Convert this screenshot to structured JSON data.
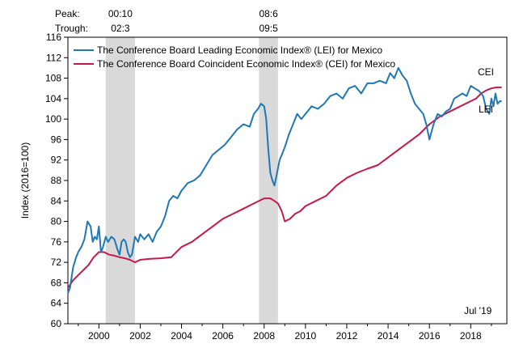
{
  "chart_data": {
    "type": "line",
    "ylabel": "Index (2016=100)",
    "xlabel": "",
    "ylim": [
      60,
      116
    ],
    "yticks": [
      60,
      64,
      68,
      72,
      76,
      80,
      84,
      88,
      92,
      96,
      100,
      104,
      108,
      112,
      116
    ],
    "xlim": [
      1998.5,
      2019.75
    ],
    "xticks": [
      2000,
      2002,
      2004,
      2006,
      2008,
      2010,
      2012,
      2014,
      2016,
      2018
    ],
    "xtick_labels": [
      "2000",
      "2002",
      "2004",
      "2006",
      "2008",
      "2010",
      "2012",
      "2014",
      "2016",
      "2018"
    ],
    "grid": false,
    "legend_position": "top-left",
    "peak_trough": {
      "peak_label": "Peak:",
      "trough_label": "Trough:",
      "periods": [
        {
          "peak": "00:10",
          "trough": "02:3",
          "start": 2000.33,
          "end": 2001.75
        },
        {
          "peak": "08:6",
          "trough": "09:5",
          "start": 2007.75,
          "end": 2008.67
        }
      ]
    },
    "annotations": {
      "date": "Jul '19",
      "cei": "CEI",
      "lei": "LEI"
    },
    "colors": {
      "lei": "#1f77b4",
      "cei": "#c8174a",
      "recession": "#d9d9d9"
    },
    "series": [
      {
        "name": "The Conference Board Leading Economic Index® (LEI) for Mexico",
        "key": "lei",
        "x": [
          1998.5,
          1998.6,
          1998.75,
          1998.9,
          1999.0,
          1999.15,
          1999.3,
          1999.45,
          1999.6,
          1999.7,
          1999.8,
          1999.9,
          2000.0,
          2000.1,
          2000.2,
          2000.33,
          2000.45,
          2000.6,
          2000.75,
          2000.9,
          2001.0,
          2001.1,
          2001.2,
          2001.3,
          2001.4,
          2001.5,
          2001.6,
          2001.75,
          2001.9,
          2002.0,
          2002.2,
          2002.4,
          2002.6,
          2002.8,
          2003.0,
          2003.2,
          2003.4,
          2003.6,
          2003.8,
          2004.0,
          2004.3,
          2004.6,
          2004.9,
          2005.2,
          2005.5,
          2005.8,
          2006.1,
          2006.4,
          2006.7,
          2007.0,
          2007.3,
          2007.5,
          2007.7,
          2007.85,
          2008.0,
          2008.1,
          2008.2,
          2008.3,
          2008.4,
          2008.5,
          2008.6,
          2008.75,
          2008.9,
          2009.0,
          2009.2,
          2009.4,
          2009.6,
          2009.8,
          2010.0,
          2010.3,
          2010.6,
          2010.9,
          2011.2,
          2011.5,
          2011.8,
          2012.1,
          2012.4,
          2012.7,
          2013.0,
          2013.3,
          2013.6,
          2013.9,
          2014.1,
          2014.3,
          2014.5,
          2014.7,
          2014.9,
          2015.1,
          2015.3,
          2015.5,
          2015.7,
          2015.85,
          2016.0,
          2016.2,
          2016.4,
          2016.6,
          2016.8,
          2017.0,
          2017.2,
          2017.4,
          2017.6,
          2017.8,
          2018.0,
          2018.2,
          2018.4,
          2018.6,
          2018.75,
          2018.9,
          2019.0,
          2019.1,
          2019.2,
          2019.3,
          2019.42,
          2019.5
        ],
        "values": [
          66,
          67,
          71,
          73,
          74,
          75,
          76.5,
          80,
          79,
          76,
          77,
          76.5,
          79,
          74,
          75,
          77,
          76,
          77,
          76.5,
          74.5,
          73.5,
          76,
          76.5,
          76,
          74,
          73,
          73.5,
          77,
          76,
          77.5,
          76.5,
          77.5,
          76,
          78,
          79,
          81,
          84,
          85,
          84.5,
          86,
          87.5,
          88,
          89,
          91,
          93,
          94,
          95,
          96.5,
          98,
          99,
          98.5,
          101,
          102,
          103,
          102.5,
          100,
          94,
          89.5,
          88,
          87,
          89,
          92,
          93.5,
          94.5,
          97,
          99,
          101,
          100,
          101,
          102.5,
          102,
          103,
          104.5,
          105,
          104,
          106,
          106.5,
          105,
          107,
          107,
          107.5,
          107,
          109,
          108,
          110,
          108.5,
          107.5,
          105,
          103,
          102,
          101,
          99,
          96,
          99,
          101,
          100.5,
          101.5,
          102,
          104,
          104.5,
          105,
          104.5,
          106.5,
          106,
          105.5,
          104.5,
          102,
          101,
          104,
          102.5,
          105,
          103,
          103.5,
          103.5
        ]
      },
      {
        "name": "The Conference Board Coincident Economic Index® (CEI) for Mexico",
        "key": "cei",
        "x": [
          1998.5,
          1998.75,
          1999.0,
          1999.25,
          1999.5,
          1999.75,
          2000.0,
          2000.25,
          2000.5,
          2000.75,
          2001.0,
          2001.25,
          2001.5,
          2001.75,
          2002.0,
          2002.5,
          2003.0,
          2003.5,
          2004.0,
          2004.5,
          2005.0,
          2005.5,
          2006.0,
          2006.5,
          2007.0,
          2007.5,
          2007.85,
          2008.0,
          2008.3,
          2008.5,
          2008.67,
          2008.85,
          2009.0,
          2009.25,
          2009.5,
          2009.75,
          2010.0,
          2010.5,
          2011.0,
          2011.5,
          2012.0,
          2012.5,
          2013.0,
          2013.5,
          2014.0,
          2014.5,
          2015.0,
          2015.5,
          2016.0,
          2016.5,
          2017.0,
          2017.5,
          2018.0,
          2018.25,
          2018.5,
          2018.75,
          2019.0,
          2019.25,
          2019.5
        ],
        "values": [
          67,
          68.5,
          69.5,
          70.5,
          71.5,
          73,
          74,
          74,
          73.5,
          73.3,
          73,
          72.8,
          72.5,
          72,
          72.5,
          72.7,
          72.8,
          73,
          75,
          76,
          77.5,
          79,
          80.5,
          81.5,
          82.5,
          83.5,
          84.2,
          84.5,
          84.5,
          84,
          83.5,
          82,
          80,
          80.5,
          81.5,
          82,
          83,
          84,
          85,
          87,
          88.5,
          89.5,
          90.3,
          91,
          92.5,
          94,
          95.5,
          97,
          99,
          100.5,
          101.5,
          102.5,
          103.5,
          104,
          105,
          105.6,
          106,
          106.2,
          106.2
        ]
      }
    ]
  }
}
